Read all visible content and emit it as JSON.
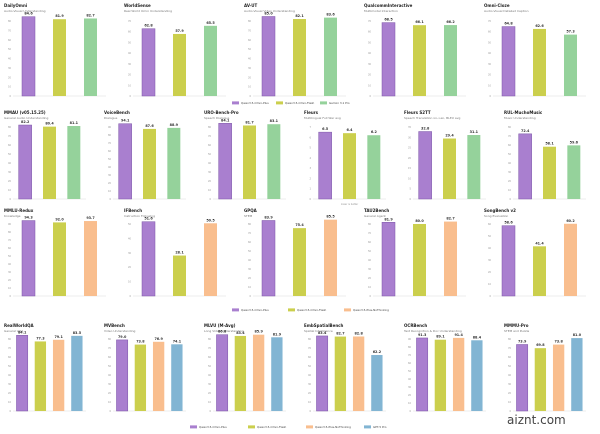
{
  "colors": {
    "qwen35_omni_plus": "#a97fcf",
    "qwen35_omni_flash": "#cbcf4d",
    "gemini31_pro": "#95d29b",
    "qwen35_plus_nothinking": "#f9be8e",
    "gpt": "#82b5d3"
  },
  "legends": [
    [
      "Qwen3.5-Omni-Plus",
      "Qwen3.5-Omni-Flash",
      "Gemini 3.1 Pro"
    ],
    [
      "Qwen3.5-Omni-Plus",
      "Qwen3.5-Omni-Flash",
      "Qwen3.5-Plus-NoThinking"
    ],
    [
      "Qwen3.5-Omni-Plus",
      "Qwen3.5-Omni-Flash",
      "Qwen3.5-Plus-NoThinking",
      "GPT-5 Pro"
    ]
  ],
  "watermark": "aiznt.com",
  "chart_data": [
    {
      "type": "bar",
      "title": "DailyOmni",
      "subtitle": "Audio-Visual Understanding",
      "categories": [
        "Qwen3.5-Omni-Plus",
        "Qwen3.5-Omni-Flash",
        "Gemini 3.1 Pro"
      ],
      "values": [
        84.6,
        81.9,
        82.7
      ],
      "value_labels": [
        "84.6",
        "81.9",
        "82.7"
      ],
      "ylim": [
        0,
        80
      ],
      "yticks": [
        "80",
        "70",
        "60",
        "50",
        "40",
        "30",
        "20",
        "10",
        "0"
      ]
    },
    {
      "type": "bar",
      "title": "WorldSense",
      "subtitle": "Real World Omni Understanding",
      "categories": [
        "Qwen3.5-Omni-Plus",
        "Qwen3.5-Omni-Flash",
        "Gemini 3.1 Pro"
      ],
      "values": [
        62.8,
        57.9,
        65.5
      ],
      "value_labels": [
        "62.8",
        "57.9",
        "65.5"
      ],
      "ylim": [
        0,
        70
      ],
      "yticks": [
        "70",
        "60",
        "50",
        "40",
        "30",
        "20",
        "10",
        "0"
      ]
    },
    {
      "type": "bar",
      "title": "AV-UT",
      "subtitle": "Audio-Visual Video Understanding",
      "categories": [
        "Qwen3.5-Omni-Plus",
        "Qwen3.5-Omni-Flash",
        "Gemini 3.1 Pro"
      ],
      "values": [
        85.0,
        82.1,
        83.6
      ],
      "value_labels": [
        "85.0",
        "82.1",
        "83.6"
      ],
      "ylim": [
        0,
        80
      ],
      "yticks": [
        "80",
        "70",
        "60",
        "50",
        "40",
        "30",
        "20",
        "10",
        "0"
      ]
    },
    {
      "type": "bar",
      "title": "QualcommInteractive",
      "subtitle": "Multimodal Interaction",
      "categories": [
        "Qwen3.5-Omni-Plus",
        "Qwen3.5-Omni-Flash",
        "Gemini 3.1 Pro"
      ],
      "values": [
        68.5,
        66.1,
        66.2
      ],
      "value_labels": [
        "68.5",
        "66.1",
        "66.2"
      ],
      "ylim": [
        0,
        70
      ],
      "yticks": [
        "70",
        "60",
        "50",
        "40",
        "30",
        "20",
        "10",
        "0"
      ]
    },
    {
      "type": "bar",
      "title": "Omni-Cloze",
      "subtitle": "Audio-Visual Detailed Caption",
      "categories": [
        "Qwen3.5-Omni-Plus",
        "Qwen3.5-Omni-Flash",
        "Gemini 3.1 Pro"
      ],
      "values": [
        64.8,
        62.6,
        57.3
      ],
      "value_labels": [
        "64.8",
        "62.6",
        "57.3"
      ],
      "ylim": [
        0,
        70
      ],
      "yticks": [
        "70",
        "60",
        "50",
        "40",
        "30",
        "20",
        "10",
        "0"
      ]
    },
    {
      "type": "bar",
      "title": "MMAU (v05.15.25)",
      "subtitle": "General Audio Understanding",
      "categories": [
        "Qwen3.5-Omni-Plus",
        "Qwen3.5-Omni-Flash",
        "Gemini 3.1 Pro"
      ],
      "values": [
        82.2,
        80.4,
        81.1
      ],
      "value_labels": [
        "82.2",
        "80.4",
        "81.1"
      ],
      "ylim": [
        0,
        80
      ],
      "yticks": [
        "80",
        "70",
        "60",
        "50",
        "40",
        "30",
        "20",
        "10",
        "0"
      ]
    },
    {
      "type": "bar",
      "title": "VoiceBench",
      "subtitle": "Dialogue",
      "categories": [
        "Qwen3.5-Omni-Plus",
        "Qwen3.5-Omni-Flash",
        "Gemini 3.1 Pro"
      ],
      "values": [
        94.1,
        87.6,
        88.9
      ],
      "value_labels": [
        "94.1",
        "87.6",
        "88.9"
      ],
      "ylim": [
        0,
        90
      ],
      "yticks": [
        "90",
        "80",
        "70",
        "60",
        "50",
        "40",
        "30",
        "20",
        "10",
        "0"
      ]
    },
    {
      "type": "bar",
      "title": "URO-Bench-Pro",
      "subtitle": "Speech Dialogue",
      "categories": [
        "Qwen3.5-Omni-Plus",
        "Qwen3.5-Omni-Flash",
        "Gemini 3.1 Pro"
      ],
      "values": [
        84.1,
        81.7,
        83.1
      ],
      "value_labels": [
        "84.1",
        "81.7",
        "83.1"
      ],
      "ylim": [
        0,
        80
      ],
      "yticks": [
        "80",
        "70",
        "60",
        "50",
        "40",
        "30",
        "20",
        "10",
        "0"
      ]
    },
    {
      "type": "bar",
      "title": "Fleurs",
      "subtitle": "Multilingual Full Wer avg",
      "categories": [
        "Qwen3.5-Omni-Plus",
        "Qwen3.5-Omni-Flash",
        "Gemini 3.1 Pro"
      ],
      "values": [
        6.5,
        6.4,
        6.2
      ],
      "value_labels": [
        "6.5",
        "6.4",
        "6.2"
      ],
      "ylim": [
        0,
        7
      ],
      "yticks": [
        "7",
        "6",
        "5",
        "4",
        "3",
        "2",
        "1",
        "0"
      ],
      "axis_note": "lower is better"
    },
    {
      "type": "bar",
      "title": "Fleurs S2TT",
      "subtitle": "Speech Translation xx->en, BLEU avg",
      "categories": [
        "Qwen3.5-Omni-Plus",
        "Qwen3.5-Omni-Flash",
        "Gemini 3.1 Pro"
      ],
      "values": [
        32.8,
        29.4,
        31.1
      ],
      "value_labels": [
        "32.8",
        "29.4",
        "31.1"
      ],
      "ylim": [
        0,
        35
      ],
      "yticks": [
        "35",
        "30",
        "25",
        "20",
        "15",
        "10",
        "5",
        "0"
      ]
    },
    {
      "type": "bar",
      "title": "RUL-MuchoMusic",
      "subtitle": "Music Understanding",
      "categories": [
        "Qwen3.5-Omni-Plus",
        "Qwen3.5-Omni-Flash",
        "Gemini 3.1 Pro"
      ],
      "values": [
        72.4,
        58.1,
        59.6
      ],
      "value_labels": [
        "72.4",
        "58.1",
        "59.6"
      ],
      "ylim": [
        0,
        80
      ],
      "yticks": [
        "80",
        "70",
        "60",
        "50",
        "40",
        "30",
        "20",
        "10",
        "0"
      ]
    },
    {
      "type": "bar",
      "title": "MMLU-Redux",
      "subtitle": "Knowledge",
      "categories": [
        "Qwen3.5-Omni-Plus",
        "Qwen3.5-Omni-Flash",
        "Qwen3.5-Plus-NoThinking"
      ],
      "values": [
        94.3,
        92.0,
        93.7
      ],
      "value_labels": [
        "94.3",
        "92.0",
        "93.7"
      ],
      "ylim": [
        0,
        90
      ],
      "yticks": [
        "90",
        "80",
        "70",
        "60",
        "50",
        "40",
        "30",
        "20",
        "10",
        "0"
      ]
    },
    {
      "type": "bar",
      "title": "IFBench",
      "subtitle": "Instruction Following",
      "categories": [
        "Qwen3.5-Omni-Plus",
        "Qwen3.5-Omni-Flash",
        "Qwen3.5-Plus-NoThinking"
      ],
      "values": [
        51.6,
        28.1,
        50.5
      ],
      "value_labels": [
        "51.6",
        "28.1",
        "50.5"
      ],
      "ylim": [
        0,
        50
      ],
      "yticks": [
        "50",
        "40",
        "30",
        "20",
        "10",
        "0"
      ]
    },
    {
      "type": "bar",
      "title": "GPQA",
      "subtitle": "STEM",
      "categories": [
        "Qwen3.5-Omni-Plus",
        "Qwen3.5-Omni-Flash",
        "Qwen3.5-Plus-NoThinking"
      ],
      "values": [
        83.9,
        75.4,
        85.5
      ],
      "value_labels": [
        "83.9",
        "75.4",
        "85.5"
      ],
      "ylim": [
        0,
        80
      ],
      "yticks": [
        "80",
        "70",
        "60",
        "50",
        "40",
        "30",
        "20",
        "10",
        "0"
      ]
    },
    {
      "type": "bar",
      "title": "TAU2Bench",
      "subtitle": "General Agent",
      "categories": [
        "Qwen3.5-Omni-Plus",
        "Qwen3.5-Omni-Flash",
        "Qwen3.5-Plus-NoThinking"
      ],
      "values": [
        81.9,
        80.0,
        82.7
      ],
      "value_labels": [
        "81.9",
        "80.0",
        "82.7"
      ],
      "ylim": [
        0,
        80
      ],
      "yticks": [
        "80",
        "70",
        "60",
        "50",
        "40",
        "30",
        "20",
        "10",
        "0"
      ]
    },
    {
      "type": "bar",
      "title": "SongBench v2",
      "subtitle": "Song Evaluation",
      "categories": [
        "Qwen3.5-Omni-Plus",
        "Qwen3.5-Omni-Flash",
        "Qwen3.5-Plus-NoThinking"
      ],
      "values": [
        58.6,
        41.4,
        60.2
      ],
      "value_labels": [
        "58.6",
        "41.4",
        "60.2"
      ],
      "ylim": [
        0,
        60
      ],
      "yticks": [
        "60",
        "50",
        "40",
        "30",
        "20",
        "10",
        "0"
      ]
    },
    {
      "type": "bar",
      "title": "RealWorldQA",
      "subtitle": "General VQA",
      "categories": [
        "Qwen3.5-Omni-Plus",
        "Qwen3.5-Omni-Flash",
        "Qwen3.5-Plus-NoThinking",
        "GPT-5 Pro"
      ],
      "values": [
        84.1,
        77.3,
        79.1,
        83.5
      ],
      "value_labels": [
        "84.1",
        "77.3",
        "79.1",
        "83.5"
      ],
      "ylim": [
        0,
        80
      ],
      "yticks": [
        "80",
        "70",
        "60",
        "50",
        "40",
        "30",
        "20",
        "10",
        "0"
      ]
    },
    {
      "type": "bar",
      "title": "MVBench",
      "subtitle": "Video Understanding",
      "categories": [
        "Qwen3.5-Omni-Plus",
        "Qwen3.5-Omni-Flash",
        "Qwen3.5-Plus-NoThinking",
        "GPT-5 Pro"
      ],
      "values": [
        79.0,
        73.8,
        76.9,
        74.1
      ],
      "value_labels": [
        "79.0",
        "73.8",
        "76.9",
        "74.1"
      ],
      "ylim": [
        0,
        80
      ],
      "yticks": [
        "80",
        "70",
        "60",
        "50",
        "40",
        "30",
        "20",
        "10",
        "0"
      ]
    },
    {
      "type": "bar",
      "title": "MLVU (M-Avg)",
      "subtitle": "Long Video Understanding",
      "categories": [
        "Qwen3.5-Omni-Plus",
        "Qwen3.5-Omni-Flash",
        "Qwen3.5-Plus-NoThinking",
        "GPT-5 Pro"
      ],
      "values": [
        86.8,
        83.4,
        85.9,
        81.9
      ],
      "value_labels": [
        "86.8",
        "83.4",
        "85.9",
        "81.9"
      ],
      "ylim": [
        0,
        80
      ],
      "yticks": [
        "80",
        "70",
        "60",
        "50",
        "40",
        "30",
        "20",
        "10",
        "0"
      ]
    },
    {
      "type": "bar",
      "title": "EmbSpatialBench",
      "subtitle": "Spatial Intelligence",
      "categories": [
        "Qwen3.5-Omni-Plus",
        "Qwen3.5-Omni-Flash",
        "Qwen3.5-Plus-NoThinking",
        "GPT-5 Pro"
      ],
      "values": [
        83.4,
        82.7,
        82.8,
        62.2
      ],
      "value_labels": [
        "83.4",
        "82.7",
        "82.8",
        "62.2"
      ],
      "ylim": [
        0,
        80
      ],
      "yticks": [
        "80",
        "70",
        "60",
        "50",
        "40",
        "30",
        "20",
        "10",
        "0"
      ]
    },
    {
      "type": "bar",
      "title": "OCRBench",
      "subtitle": "Text Recognition & Doc Understanding",
      "categories": [
        "Qwen3.5-Omni-Plus",
        "Qwen3.5-Omni-Flash",
        "Qwen3.5-Plus-NoThinking",
        "GPT-5 Pro"
      ],
      "values": [
        91.3,
        89.1,
        91.4,
        88.4
      ],
      "value_labels": [
        "91.3",
        "89.1",
        "91.4",
        "88.4"
      ],
      "ylim": [
        0,
        90
      ],
      "yticks": [
        "90",
        "80",
        "70",
        "60",
        "50",
        "40",
        "30",
        "20",
        "10",
        "0"
      ]
    },
    {
      "type": "bar",
      "title": "MMMU-Pro",
      "subtitle": "STEM and Puzzle",
      "categories": [
        "Qwen3.5-Omni-Plus",
        "Qwen3.5-Omni-Flash",
        "Qwen3.5-Plus-NoThinking",
        "GPT-5 Pro"
      ],
      "values": [
        73.9,
        69.8,
        73.8,
        81.0
      ],
      "value_labels": [
        "73.9",
        "69.8",
        "73.8",
        "81.0"
      ],
      "ylim": [
        0,
        80
      ],
      "yticks": [
        "80",
        "70",
        "60",
        "50",
        "40",
        "30",
        "20",
        "10",
        "0"
      ]
    }
  ]
}
